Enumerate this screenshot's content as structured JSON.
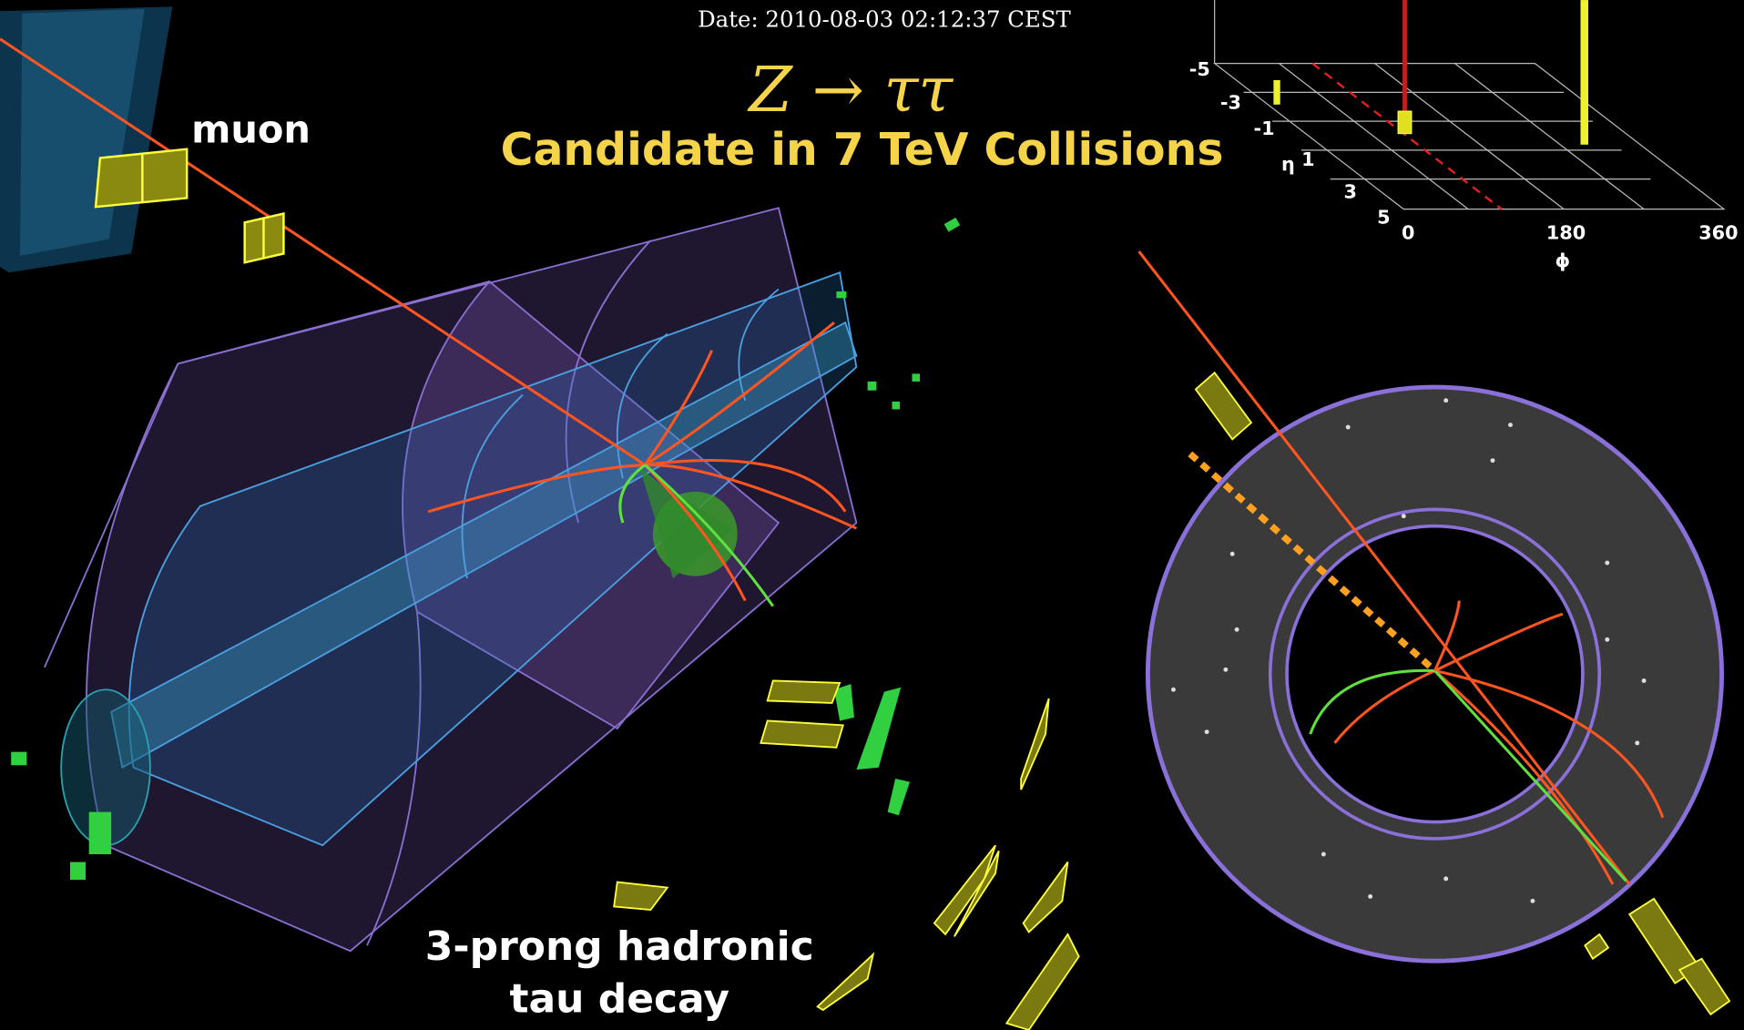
{
  "header": {
    "date": "Date: 2010-08-03 02:12:37 CEST"
  },
  "title": {
    "process": "Z → ττ",
    "subtitle": "Candidate in 7 TeV Collisions"
  },
  "labels": {
    "muon": "muon",
    "tau_line1": "3-prong hadronic",
    "tau_line2": "tau decay"
  },
  "lego": {
    "eta_label": "η",
    "eta_ticks": [
      "-5",
      "-3",
      "-1",
      "1",
      "3",
      "5"
    ],
    "phi_label": "ϕ",
    "phi_ticks": [
      "0",
      "180",
      "360"
    ]
  }
}
